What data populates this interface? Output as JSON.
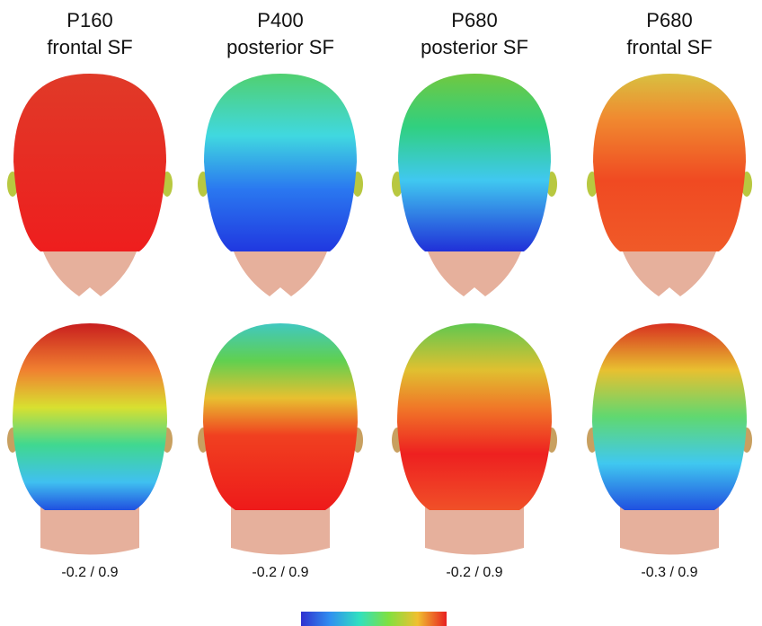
{
  "columns": [
    {
      "title": [
        "P160",
        "frontal SF"
      ],
      "range": "-0.2 / 0.9"
    },
    {
      "title": [
        "P400",
        "posterior SF"
      ],
      "range": "-0.2 / 0.9"
    },
    {
      "title": [
        "P680",
        "posterior SF"
      ],
      "range": "-0.2 / 0.9"
    },
    {
      "title": [
        "P680",
        "frontal SF"
      ],
      "range": "-0.3 / 0.9"
    }
  ]
}
